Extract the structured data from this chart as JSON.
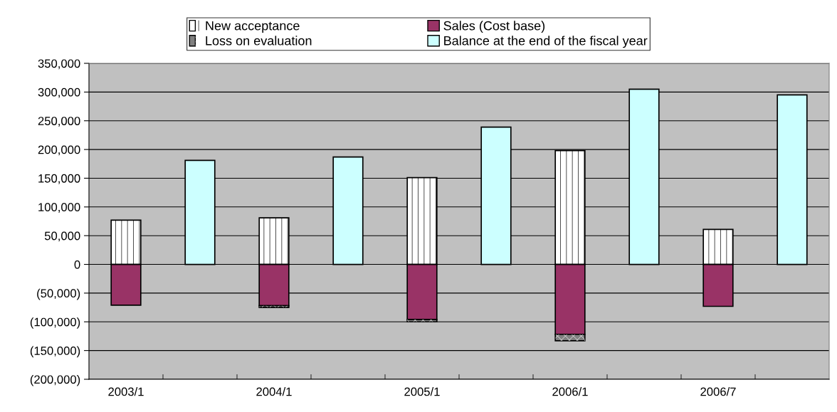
{
  "chart_data": {
    "type": "bar",
    "stacked": true,
    "categories": [
      "2003/1",
      null,
      "2004/1",
      null,
      "2005/1",
      null,
      "2006/1",
      null,
      "2006/7",
      null
    ],
    "series": [
      {
        "name": "New acceptance",
        "color": "#ffffff",
        "values": [
          77000,
          null,
          81000,
          null,
          151000,
          null,
          198000,
          null,
          61000,
          null
        ]
      },
      {
        "name": "Sales (Cost base)",
        "color": "#993366",
        "values": [
          -71000,
          null,
          -72000,
          null,
          -96000,
          null,
          -122000,
          null,
          -73000,
          null
        ]
      },
      {
        "name": "Loss on evaluation",
        "color": "#808080",
        "values": [
          null,
          null,
          -3000,
          null,
          -4000,
          null,
          -11000,
          null,
          null,
          null
        ]
      },
      {
        "name": "Balance at the end of the fiscal year",
        "color": "#ccffff",
        "values": [
          null,
          181000,
          null,
          187000,
          null,
          239000,
          null,
          305000,
          null,
          295000
        ]
      }
    ],
    "ylim": [
      -200000,
      350000
    ],
    "yticks": [
      {
        "value": -200000,
        "label": "(200,000)"
      },
      {
        "value": -150000,
        "label": "(150,000)"
      },
      {
        "value": -100000,
        "label": "(100,000)"
      },
      {
        "value": -50000,
        "label": "(50,000)"
      },
      0,
      {
        "value": 50000,
        "label": "50,000"
      },
      {
        "value": 100000,
        "label": "100,000"
      },
      {
        "value": 150000,
        "label": "150,000"
      },
      {
        "value": 200000,
        "label": "200,000"
      },
      {
        "value": 250000,
        "label": "250,000"
      },
      {
        "value": 300000,
        "label": "300,000"
      },
      {
        "value": 350000,
        "label": "350,000"
      }
    ],
    "grid": "y",
    "legend": "top"
  }
}
